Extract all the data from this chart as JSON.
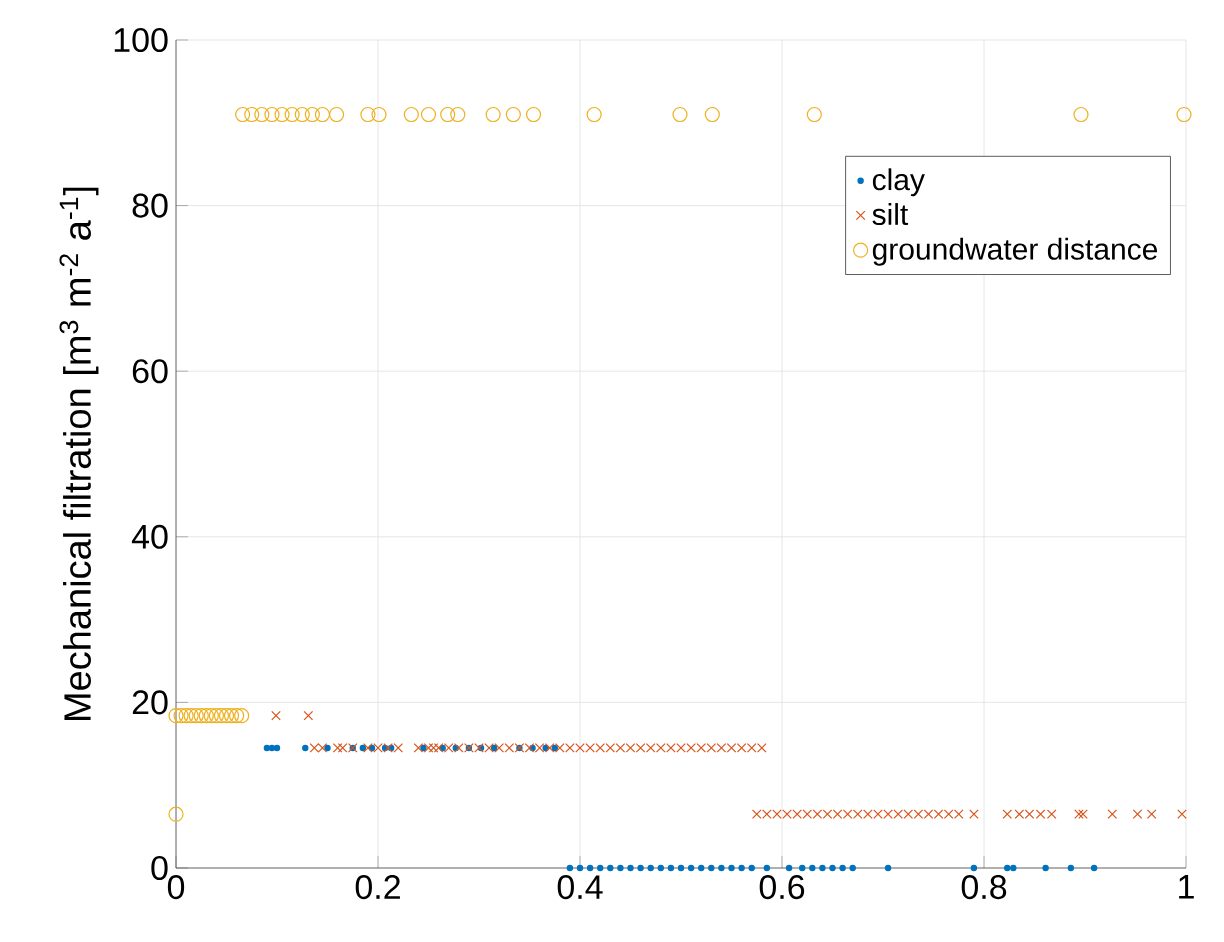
{
  "chart_data": {
    "type": "scatter",
    "ylabel": "Mechanical filtration [m$^{3}$ m$^{-2}$ a$^{-1}$]",
    "xlim": [
      0,
      1
    ],
    "ylim": [
      0,
      100
    ],
    "xticks": [
      0,
      0.2,
      0.4,
      0.6,
      0.8,
      1
    ],
    "yticks": [
      0,
      20,
      40,
      60,
      80,
      100
    ],
    "grid": true,
    "legend": "top right",
    "series": [
      {
        "name": "clay",
        "color": "#0072bd",
        "marker": "dot",
        "x": [
          0.09,
          0.095,
          0.1,
          0.128,
          0.15,
          0.175,
          0.185,
          0.194,
          0.207,
          0.213,
          0.245,
          0.264,
          0.277,
          0.29,
          0.302,
          0.315,
          0.34,
          0.353,
          0.366,
          0.375,
          0.39,
          0.4,
          0.41,
          0.42,
          0.43,
          0.44,
          0.45,
          0.46,
          0.47,
          0.48,
          0.49,
          0.5,
          0.51,
          0.52,
          0.53,
          0.54,
          0.55,
          0.56,
          0.57,
          0.585,
          0.607,
          0.62,
          0.63,
          0.64,
          0.65,
          0.66,
          0.67,
          0.705,
          0.79,
          0.823,
          0.829,
          0.861,
          0.886,
          0.909
        ],
        "values": [
          14.5,
          14.5,
          14.5,
          14.5,
          14.5,
          14.5,
          14.5,
          14.5,
          14.5,
          14.5,
          14.5,
          14.5,
          14.5,
          14.5,
          14.5,
          14.5,
          14.5,
          14.5,
          14.5,
          14.5,
          0,
          0,
          0,
          0,
          0,
          0,
          0,
          0,
          0,
          0,
          0,
          0,
          0,
          0,
          0,
          0,
          0,
          0,
          0,
          0,
          0,
          0,
          0,
          0,
          0,
          0,
          0,
          0,
          0,
          0,
          0,
          0,
          0,
          0
        ]
      },
      {
        "name": "silt",
        "color": "#d95319",
        "marker": "cross",
        "x": [
          0.099,
          0.131,
          0.137,
          0.145,
          0.16,
          0.165,
          0.175,
          0.19,
          0.2,
          0.21,
          0.22,
          0.24,
          0.25,
          0.255,
          0.26,
          0.27,
          0.28,
          0.29,
          0.3,
          0.31,
          0.32,
          0.33,
          0.34,
          0.35,
          0.36,
          0.37,
          0.38,
          0.39,
          0.4,
          0.41,
          0.42,
          0.43,
          0.44,
          0.45,
          0.46,
          0.47,
          0.48,
          0.49,
          0.5,
          0.51,
          0.52,
          0.53,
          0.54,
          0.55,
          0.56,
          0.57,
          0.58,
          0.575,
          0.585,
          0.595,
          0.605,
          0.615,
          0.625,
          0.635,
          0.645,
          0.655,
          0.665,
          0.675,
          0.685,
          0.695,
          0.705,
          0.715,
          0.725,
          0.735,
          0.745,
          0.755,
          0.765,
          0.775,
          0.79,
          0.823,
          0.835,
          0.845,
          0.856,
          0.867,
          0.894,
          0.898,
          0.927,
          0.952,
          0.966,
          0.996
        ],
        "values": [
          18.4,
          18.4,
          14.5,
          14.5,
          14.5,
          14.5,
          14.5,
          14.5,
          14.5,
          14.5,
          14.5,
          14.5,
          14.5,
          14.5,
          14.5,
          14.5,
          14.5,
          14.5,
          14.5,
          14.5,
          14.5,
          14.5,
          14.5,
          14.5,
          14.5,
          14.5,
          14.5,
          14.5,
          14.5,
          14.5,
          14.5,
          14.5,
          14.5,
          14.5,
          14.5,
          14.5,
          14.5,
          14.5,
          14.5,
          14.5,
          14.5,
          14.5,
          14.5,
          14.5,
          14.5,
          14.5,
          14.5,
          6.5,
          6.5,
          6.5,
          6.5,
          6.5,
          6.5,
          6.5,
          6.5,
          6.5,
          6.5,
          6.5,
          6.5,
          6.5,
          6.5,
          6.5,
          6.5,
          6.5,
          6.5,
          6.5,
          6.5,
          6.5,
          6.5,
          6.5,
          6.5,
          6.5,
          6.5,
          6.5,
          6.5,
          6.5,
          6.5,
          6.5,
          6.5,
          6.5
        ]
      },
      {
        "name": "groundwater distance",
        "color": "#edb120",
        "marker": "circle",
        "x": [
          0,
          0.005,
          0.01,
          0.015,
          0.02,
          0.025,
          0.03,
          0.035,
          0.04,
          0.045,
          0.05,
          0.055,
          0.06,
          0.065,
          0,
          0.066,
          0.075,
          0.085,
          0.095,
          0.105,
          0.115,
          0.125,
          0.135,
          0.145,
          0.159,
          0.19,
          0.201,
          0.233,
          0.25,
          0.269,
          0.279,
          0.314,
          0.334,
          0.354,
          0.414,
          0.499,
          0.531,
          0.632,
          0.896,
          0.998
        ],
        "values": [
          18.4,
          18.4,
          18.4,
          18.4,
          18.4,
          18.4,
          18.4,
          18.4,
          18.4,
          18.4,
          18.4,
          18.4,
          18.4,
          18.4,
          6.5,
          91,
          91,
          91,
          91,
          91,
          91,
          91,
          91,
          91,
          91,
          91,
          91,
          91,
          91,
          91,
          91,
          91,
          91,
          91,
          91,
          91,
          91,
          91,
          91,
          91
        ]
      }
    ]
  }
}
